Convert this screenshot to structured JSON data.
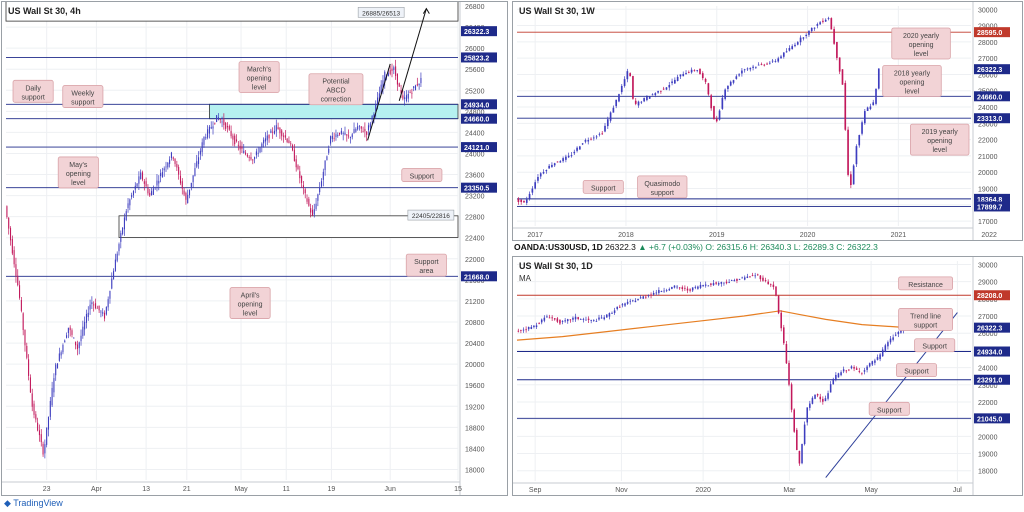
{
  "chart_data": [
    {
      "id": "p1",
      "type": "candlestick",
      "title": "US Wall St 30, 4h",
      "ylim": [
        17800,
        26800
      ],
      "yticks": [
        26800,
        26400,
        26000,
        25600,
        25200,
        24800,
        24400,
        24000,
        23600,
        23200,
        22800,
        22400,
        22000,
        21600,
        21200,
        20800,
        20400,
        20000,
        19600,
        19200,
        18800,
        18400,
        18000
      ],
      "xticks": [
        {
          "label": "23",
          "pos": 0.09
        },
        {
          "label": "Apr",
          "pos": 0.2
        },
        {
          "label": "13",
          "pos": 0.31
        },
        {
          "label": "21",
          "pos": 0.4
        },
        {
          "label": "May",
          "pos": 0.52
        },
        {
          "label": "11",
          "pos": 0.62
        },
        {
          "label": "19",
          "pos": 0.72
        },
        {
          "label": "Jun",
          "pos": 0.85
        },
        {
          "label": "15",
          "pos": 1.0
        }
      ],
      "series_path": [
        [
          0,
          23000
        ],
        [
          0.03,
          21400
        ],
        [
          0.06,
          19200
        ],
        [
          0.085,
          18300
        ],
        [
          0.11,
          19900
        ],
        [
          0.14,
          20700
        ],
        [
          0.16,
          20300
        ],
        [
          0.19,
          21200
        ],
        [
          0.22,
          20900
        ],
        [
          0.24,
          21800
        ],
        [
          0.27,
          23000
        ],
        [
          0.3,
          23600
        ],
        [
          0.32,
          23200
        ],
        [
          0.35,
          23700
        ],
        [
          0.37,
          24000
        ],
        [
          0.4,
          23100
        ],
        [
          0.42,
          23700
        ],
        [
          0.44,
          24300
        ],
        [
          0.47,
          24700
        ],
        [
          0.49,
          24500
        ],
        [
          0.51,
          24200
        ],
        [
          0.53,
          24000
        ],
        [
          0.55,
          23900
        ],
        [
          0.57,
          24200
        ],
        [
          0.6,
          24500
        ],
        [
          0.63,
          24200
        ],
        [
          0.66,
          23300
        ],
        [
          0.68,
          22800
        ],
        [
          0.7,
          23500
        ],
        [
          0.72,
          24300
        ],
        [
          0.74,
          24400
        ],
        [
          0.76,
          24300
        ],
        [
          0.78,
          24500
        ],
        [
          0.8,
          24400
        ],
        [
          0.82,
          24900
        ],
        [
          0.84,
          25500
        ],
        [
          0.86,
          25600
        ],
        [
          0.88,
          25000
        ],
        [
          0.9,
          25200
        ],
        [
          0.93,
          25500
        ],
        [
          0.95,
          25900
        ],
        [
          0.97,
          26200
        ],
        [
          0.99,
          26300
        ],
        [
          1.0,
          26322
        ]
      ],
      "x_end": 0.92,
      "hlines": [
        {
          "value": 26322.3,
          "label": "26322.3",
          "color": "#1e2a8a",
          "line": false
        },
        {
          "value": 25823.2,
          "label": "25823.2",
          "color": "#1e2a8a",
          "line": true
        },
        {
          "value": 24934.0,
          "label": "24934.0",
          "color": "#1e2a8a",
          "line": true
        },
        {
          "value": 24660.0,
          "label": "24660.0",
          "color": "#1e2a8a",
          "line": true
        },
        {
          "value": 24121.0,
          "label": "24121.0",
          "color": "#1e2a8a",
          "line": true
        },
        {
          "value": 23350.5,
          "label": "23350.5",
          "color": "#1e2a8a",
          "line": true
        },
        {
          "value": 21668.0,
          "label": "21668.0",
          "color": "#1e2a8a",
          "line": true
        }
      ],
      "zones": [
        {
          "from": 24660,
          "to": 24934,
          "x0": 0.45,
          "fill": "#b5f0f0",
          "stroke": "#333333"
        },
        {
          "from": 22405,
          "to": 22816,
          "x0": 0.25,
          "fill": "#ffffff",
          "stroke": "#333333"
        },
        {
          "from": 26513,
          "to": 26885,
          "x0": 0.0,
          "fill": "#ffffff",
          "stroke": "#333333"
        }
      ],
      "annotations": [
        {
          "text": "Daily support",
          "x": 0.06,
          "y": 25180
        },
        {
          "text": "Weekly support",
          "x": 0.17,
          "y": 25080
        },
        {
          "text": "March's opening level",
          "x": 0.56,
          "y": 25450
        },
        {
          "text": "Potential ABCD correction",
          "x": 0.73,
          "y": 25220
        },
        {
          "text": "May's opening level",
          "x": 0.16,
          "y": 23640
        },
        {
          "text": "Support",
          "x": 0.92,
          "y": 23590
        },
        {
          "text": "Support area",
          "x": 0.93,
          "y": 21880
        },
        {
          "text": "April's opening level",
          "x": 0.54,
          "y": 21160
        }
      ],
      "boxlabels": [
        {
          "text": "26885/26513",
          "x": 0.83,
          "y": 26680
        },
        {
          "text": "22405/22816",
          "x": 0.94,
          "y": 22830
        }
      ]
    },
    {
      "id": "p2",
      "type": "candlestick",
      "title": "US Wall St 30, 1W",
      "ylim": [
        16700,
        30200
      ],
      "yticks": [
        30000,
        29000,
        28000,
        27000,
        26000,
        25000,
        24000,
        23000,
        22000,
        21000,
        20000,
        19000,
        18000,
        17000
      ],
      "xticks": [
        {
          "label": "2017",
          "pos": 0.04
        },
        {
          "label": "2018",
          "pos": 0.24
        },
        {
          "label": "2019",
          "pos": 0.44
        },
        {
          "label": "2020",
          "pos": 0.64
        },
        {
          "label": "2021",
          "pos": 0.84
        },
        {
          "label": "2022",
          "pos": 1.04
        }
      ],
      "series_path": [
        [
          0,
          18300
        ],
        [
          0.02,
          18100
        ],
        [
          0.05,
          19800
        ],
        [
          0.08,
          20500
        ],
        [
          0.12,
          21000
        ],
        [
          0.15,
          21900
        ],
        [
          0.19,
          22400
        ],
        [
          0.22,
          24300
        ],
        [
          0.25,
          26400
        ],
        [
          0.26,
          24100
        ],
        [
          0.29,
          24600
        ],
        [
          0.33,
          25200
        ],
        [
          0.37,
          26100
        ],
        [
          0.4,
          26300
        ],
        [
          0.42,
          25400
        ],
        [
          0.44,
          22800
        ],
        [
          0.46,
          25100
        ],
        [
          0.5,
          26300
        ],
        [
          0.54,
          26600
        ],
        [
          0.57,
          26800
        ],
        [
          0.6,
          27500
        ],
        [
          0.64,
          28500
        ],
        [
          0.67,
          29200
        ],
        [
          0.69,
          29500
        ],
        [
          0.72,
          25400
        ],
        [
          0.735,
          18600
        ],
        [
          0.75,
          21500
        ],
        [
          0.77,
          23800
        ],
        [
          0.79,
          24300
        ],
        [
          0.8,
          26322
        ]
      ],
      "x_end": 0.8,
      "hlines": [
        {
          "value": 28595.0,
          "label": "28595.0",
          "color": "#c0392b",
          "line": true
        },
        {
          "value": 26322.3,
          "label": "26322.3",
          "color": "#1e2a8a",
          "line": false
        },
        {
          "value": 24660.0,
          "label": "24660.0",
          "color": "#1e2a8a",
          "line": true
        },
        {
          "value": 23313.0,
          "label": "23313.0",
          "color": "#1e2a8a",
          "line": true
        },
        {
          "value": 18364.8,
          "label": "18364.8",
          "color": "#1e2a8a",
          "line": true
        },
        {
          "value": 17899.7,
          "label": "17899.7",
          "color": "#1e2a8a",
          "line": true
        }
      ],
      "zones": [],
      "annotations": [
        {
          "text": "2020 yearly opening level",
          "x": 0.89,
          "y": 27900
        },
        {
          "text": "2018 yearly opening level",
          "x": 0.87,
          "y": 25600
        },
        {
          "text": "2019 yearly opening level",
          "x": 0.94,
          "y": 22000
        },
        {
          "text": "Support",
          "x": 0.19,
          "y": 19100
        },
        {
          "text": "Quasimodo support",
          "x": 0.32,
          "y": 19100
        }
      ],
      "boxlabels": []
    },
    {
      "id": "p3",
      "type": "candlestick",
      "title": "US Wall St 30, 1D",
      "legend": "MA",
      "ylim": [
        17400,
        30200
      ],
      "yticks": [
        30000,
        29000,
        28000,
        27000,
        26000,
        25000,
        24000,
        23000,
        22000,
        21000,
        20000,
        19000,
        18000
      ],
      "xticks": [
        {
          "label": "Sep",
          "pos": 0.04
        },
        {
          "label": "Nov",
          "pos": 0.23
        },
        {
          "label": "2020",
          "pos": 0.41
        },
        {
          "label": "Mar",
          "pos": 0.6
        },
        {
          "label": "May",
          "pos": 0.78
        },
        {
          "label": "Jul",
          "pos": 0.97
        }
      ],
      "series_path": [
        [
          0,
          26100
        ],
        [
          0.04,
          26400
        ],
        [
          0.07,
          27000
        ],
        [
          0.1,
          26600
        ],
        [
          0.13,
          26900
        ],
        [
          0.17,
          26700
        ],
        [
          0.2,
          27000
        ],
        [
          0.23,
          27600
        ],
        [
          0.27,
          28000
        ],
        [
          0.31,
          28400
        ],
        [
          0.35,
          28700
        ],
        [
          0.38,
          28500
        ],
        [
          0.41,
          28800
        ],
        [
          0.44,
          28900
        ],
        [
          0.47,
          29000
        ],
        [
          0.5,
          29200
        ],
        [
          0.53,
          29400
        ],
        [
          0.55,
          29000
        ],
        [
          0.57,
          28700
        ],
        [
          0.58,
          27000
        ],
        [
          0.59,
          25500
        ],
        [
          0.6,
          23500
        ],
        [
          0.61,
          21000
        ],
        [
          0.62,
          19000
        ],
        [
          0.625,
          18400
        ],
        [
          0.64,
          21500
        ],
        [
          0.66,
          22500
        ],
        [
          0.68,
          22000
        ],
        [
          0.7,
          23400
        ],
        [
          0.72,
          23800
        ],
        [
          0.74,
          24000
        ],
        [
          0.76,
          23700
        ],
        [
          0.78,
          24200
        ],
        [
          0.8,
          24600
        ],
        [
          0.82,
          25500
        ],
        [
          0.84,
          26000
        ],
        [
          0.855,
          26322
        ]
      ],
      "x_end": 0.86,
      "ma": [
        [
          0,
          25600
        ],
        [
          0.1,
          25800
        ],
        [
          0.2,
          26100
        ],
        [
          0.3,
          26400
        ],
        [
          0.4,
          26700
        ],
        [
          0.5,
          27000
        ],
        [
          0.58,
          27300
        ],
        [
          0.62,
          27100
        ],
        [
          0.68,
          26800
        ],
        [
          0.76,
          26500
        ],
        [
          0.855,
          26330
        ]
      ],
      "trendline": [
        [
          0.68,
          17600
        ],
        [
          0.97,
          27200
        ]
      ],
      "hlines": [
        {
          "value": 28208.0,
          "label": "28208.0",
          "color": "#c0392b",
          "line": true
        },
        {
          "value": 26322.3,
          "label": "26322.3",
          "color": "#1e2a8a",
          "line": false
        },
        {
          "value": 24934.0,
          "label": "24934.0",
          "color": "#1e2a8a",
          "line": true
        },
        {
          "value": 23291.0,
          "label": "23291.0",
          "color": "#1e2a8a",
          "line": true
        },
        {
          "value": 21045.0,
          "label": "21045.0",
          "color": "#1e2a8a",
          "line": true
        }
      ],
      "zones": [],
      "annotations": [
        {
          "text": "Resistance",
          "x": 0.9,
          "y": 28900
        },
        {
          "text": "Trend line support",
          "x": 0.9,
          "y": 26800
        },
        {
          "text": "Support",
          "x": 0.92,
          "y": 25300
        },
        {
          "text": "Support",
          "x": 0.88,
          "y": 23850
        },
        {
          "text": "Support",
          "x": 0.82,
          "y": 21600
        }
      ],
      "boxlabels": []
    }
  ],
  "ohlc_bar": {
    "symbol": "OANDA:US30USD, 1D",
    "o_label": "26322.3",
    "change": "▲ +6.7 (+0.03%)",
    "open": "O: 26315.6",
    "high": "H: 26340.3",
    "low": "L: 26289.3",
    "close": "C: 26322.3"
  },
  "branding": "TradingView",
  "colors": {
    "up": "#3d3dbf",
    "down": "#c2185b",
    "grid": "#eef0f3",
    "label_bg": "#f2d3d6",
    "label_border": "#d9a3a8"
  }
}
